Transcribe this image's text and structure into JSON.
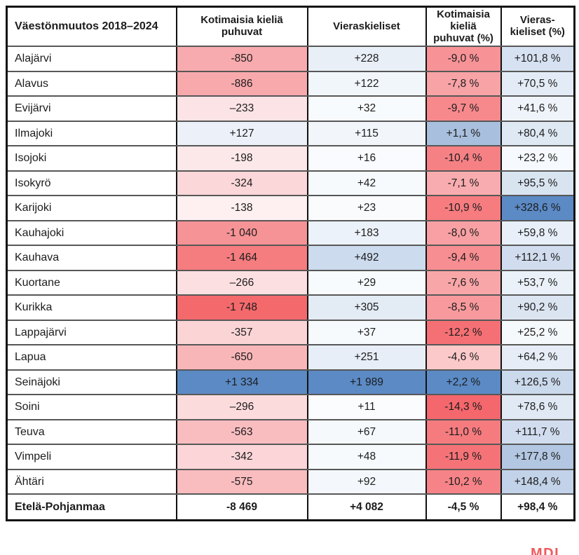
{
  "chart_data": {
    "type": "table",
    "title": "Väestönmuutos 2018–2024",
    "columns": [
      {
        "label": "Väestönmuutos 2018–2024"
      },
      {
        "label": "Kotimaisia kieliä puhuvat"
      },
      {
        "label": "Vieraskieliset"
      },
      {
        "label": "Kotimaisia kieliä puhuvat (%)"
      },
      {
        "label": "Vieras-kieliset (%)"
      }
    ],
    "legend": {
      "negative_color_max": "#f4676c",
      "positive_color_max": "#5b8ac5",
      "neutral_color": "#ffffff"
    },
    "rows": [
      {
        "name": "Alajärvi",
        "cells": [
          {
            "text": "-850",
            "bg": "#f8abae"
          },
          {
            "text": "+228",
            "bg": "#e9eff7"
          },
          {
            "text": "-9,0 %",
            "bg": "#f79397"
          },
          {
            "text": "+101,8 %",
            "bg": "#d6e1f1"
          }
        ]
      },
      {
        "name": "Alavus",
        "cells": [
          {
            "text": "-886",
            "bg": "#f8a9ac"
          },
          {
            "text": "+122",
            "bg": "#f1f6fb"
          },
          {
            "text": "-7,8 %",
            "bg": "#f8a3a6"
          },
          {
            "text": "+70,5 %",
            "bg": "#e3ecf6"
          }
        ]
      },
      {
        "name": "Evijärvi",
        "cells": [
          {
            "text": "–233",
            "bg": "#fce3e5"
          },
          {
            "text": "+32",
            "bg": "#f8fbfd"
          },
          {
            "text": "-9,7 %",
            "bg": "#f7898d"
          },
          {
            "text": "+41,6 %",
            "bg": "#eff4fa"
          }
        ]
      },
      {
        "name": "Ilmajoki",
        "cells": [
          {
            "text": "+127",
            "bg": "#ecf1f9"
          },
          {
            "text": "+115",
            "bg": "#f2f6fb"
          },
          {
            "text": "+1,1 %",
            "bg": "#a9bfde"
          },
          {
            "text": "+80,4 %",
            "bg": "#dfe9f4"
          }
        ]
      },
      {
        "name": "Isojoki",
        "cells": [
          {
            "text": "-198",
            "bg": "#fde8e9"
          },
          {
            "text": "+16",
            "bg": "#f9fbfe"
          },
          {
            "text": "-10,4 %",
            "bg": "#f68185"
          },
          {
            "text": "+23,2 %",
            "bg": "#f6f9fd"
          }
        ]
      },
      {
        "name": "Isokyrö",
        "cells": [
          {
            "text": "-324",
            "bg": "#fbd7d9"
          },
          {
            "text": "+42",
            "bg": "#f7fafd"
          },
          {
            "text": "-7,1 %",
            "bg": "#f9acaf"
          },
          {
            "text": "+95,5 %",
            "bg": "#d9e4f1"
          }
        ]
      },
      {
        "name": "Karijoki",
        "cells": [
          {
            "text": "-138",
            "bg": "#feeff0"
          },
          {
            "text": "+23",
            "bg": "#f9fbfd"
          },
          {
            "text": "-10,9 %",
            "bg": "#f67c80"
          },
          {
            "text": "+328,6 %",
            "bg": "#5b8ac5"
          }
        ]
      },
      {
        "name": "Kauhajoki",
        "cells": [
          {
            "text": "-1 040",
            "bg": "#f69396"
          },
          {
            "text": "+183",
            "bg": "#ecf2f9"
          },
          {
            "text": "-8,0 %",
            "bg": "#f8a0a3"
          },
          {
            "text": "+59,8 %",
            "bg": "#e8eff8"
          }
        ]
      },
      {
        "name": "Kauhava",
        "cells": [
          {
            "text": "-1 464",
            "bg": "#f57c7f"
          },
          {
            "text": "+492",
            "bg": "#ccdbee"
          },
          {
            "text": "-9,4 %",
            "bg": "#f78e92"
          },
          {
            "text": "+112,1 %",
            "bg": "#d1ddef"
          }
        ]
      },
      {
        "name": "Kuortane",
        "cells": [
          {
            "text": "–266",
            "bg": "#fcdfe1"
          },
          {
            "text": "+29",
            "bg": "#f8fbfd"
          },
          {
            "text": "-7,6 %",
            "bg": "#f9a6a9"
          },
          {
            "text": "+53,7 %",
            "bg": "#eaf1f8"
          }
        ]
      },
      {
        "name": "Kurikka",
        "cells": [
          {
            "text": "-1 748",
            "bg": "#f4696c"
          },
          {
            "text": "+305",
            "bg": "#e3ebf5"
          },
          {
            "text": "-8,5 %",
            "bg": "#f89a9d"
          },
          {
            "text": "+90,2 %",
            "bg": "#dbe5f2"
          }
        ]
      },
      {
        "name": "Lappajärvi",
        "cells": [
          {
            "text": "-357",
            "bg": "#fbd4d6"
          },
          {
            "text": "+37",
            "bg": "#f7fafd"
          },
          {
            "text": "-12,2 %",
            "bg": "#f57074"
          },
          {
            "text": "+25,2 %",
            "bg": "#f6f9fc"
          }
        ]
      },
      {
        "name": "Lapua",
        "cells": [
          {
            "text": "-650",
            "bg": "#f9b6b9"
          },
          {
            "text": "+251",
            "bg": "#e7eef7"
          },
          {
            "text": "-4,6 %",
            "bg": "#fbc9ca"
          },
          {
            "text": "+64,2 %",
            "bg": "#e6edf7"
          }
        ]
      },
      {
        "name": "Seinäjoki",
        "cells": [
          {
            "text": "+1 334",
            "bg": "#5b8ac5"
          },
          {
            "text": "+1 989",
            "bg": "#5b8ac5"
          },
          {
            "text": "+2,2 %",
            "bg": "#5b8ac5"
          },
          {
            "text": "+126,5 %",
            "bg": "#cbd9ec"
          }
        ]
      },
      {
        "name": "Soini",
        "cells": [
          {
            "text": "–296",
            "bg": "#fcdbdd"
          },
          {
            "text": "+11",
            "bg": "#fafcfe"
          },
          {
            "text": "-14,3 %",
            "bg": "#f4676c"
          },
          {
            "text": "+78,6 %",
            "bg": "#e0e9f4"
          }
        ]
      },
      {
        "name": "Teuva",
        "cells": [
          {
            "text": "-563",
            "bg": "#f9bdc0"
          },
          {
            "text": "+67",
            "bg": "#f5f9fc"
          },
          {
            "text": "-11,0 %",
            "bg": "#f67b7f"
          },
          {
            "text": "+111,7 %",
            "bg": "#d1ddef"
          }
        ]
      },
      {
        "name": "Vimpeli",
        "cells": [
          {
            "text": "-342",
            "bg": "#fbd5d7"
          },
          {
            "text": "+48",
            "bg": "#f7fafd"
          },
          {
            "text": "-11,9 %",
            "bg": "#f57377"
          },
          {
            "text": "+177,8 %",
            "bg": "#b3c7e2"
          }
        ]
      },
      {
        "name": "Ähtäri",
        "cells": [
          {
            "text": "-575",
            "bg": "#f9bcbf"
          },
          {
            "text": "+92",
            "bg": "#f4f8fc"
          },
          {
            "text": "-10,2 %",
            "bg": "#f68387"
          },
          {
            "text": "+148,4 %",
            "bg": "#c2d2e8"
          }
        ]
      }
    ],
    "total": {
      "name": "Etelä-Pohjanmaa",
      "cells": [
        {
          "text": "-8 469",
          "bg": "#ffffff"
        },
        {
          "text": "+4 082",
          "bg": "#ffffff"
        },
        {
          "text": "-4,5 %",
          "bg": "#ffffff"
        },
        {
          "text": "+98,4 %",
          "bg": "#ffffff"
        }
      ]
    }
  },
  "footer": {
    "logo_text": "MDI",
    "logo_color": "#f05a5e"
  }
}
